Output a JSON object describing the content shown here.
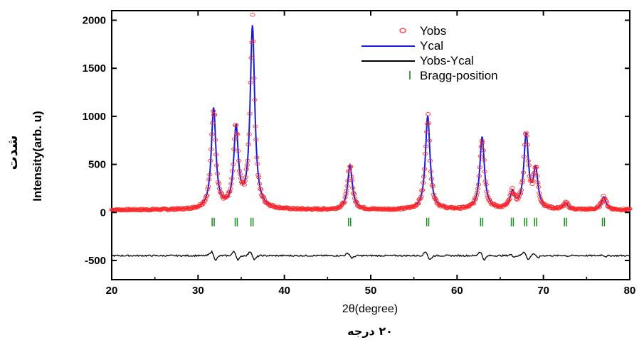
{
  "chart_data": {
    "type": "line",
    "xlabel": "2θ(degree)",
    "xlabel_secondary": "۲۰ درجه",
    "ylabel": "Intensity(arb. u)",
    "ylabel_secondary": "شدت",
    "xlim": [
      20,
      80
    ],
    "ylim": [
      -700,
      2100
    ],
    "xticks": [
      20,
      30,
      40,
      50,
      60,
      70,
      80
    ],
    "yticks": [
      -500,
      0,
      500,
      1000,
      1500,
      2000
    ],
    "grid": false,
    "legend_position": "top-right",
    "colors": {
      "Yobs": "#ff2b2b",
      "Ycal": "#1a1adc",
      "Yobs-Ycal": "#000000",
      "Bragg-position": "#1a8a1a"
    },
    "legend": [
      {
        "name": "Yobs",
        "marker": "circle"
      },
      {
        "name": "Ycal",
        "marker": "line"
      },
      {
        "name": "Yobs-Ycal",
        "marker": "line"
      },
      {
        "name": "Bragg-position",
        "marker": "tick"
      }
    ],
    "peaks": [
      {
        "x": 31.8,
        "y": 1070
      },
      {
        "x": 34.4,
        "y": 850
      },
      {
        "x": 36.3,
        "y": 1920
      },
      {
        "x": 47.6,
        "y": 490
      },
      {
        "x": 56.6,
        "y": 1000
      },
      {
        "x": 62.9,
        "y": 780
      },
      {
        "x": 66.4,
        "y": 190
      },
      {
        "x": 68.0,
        "y": 790
      },
      {
        "x": 69.1,
        "y": 420
      },
      {
        "x": 72.6,
        "y": 90
      },
      {
        "x": 77.0,
        "y": 160
      }
    ],
    "background": 25,
    "bragg_positions": [
      31.75,
      34.42,
      36.25,
      47.55,
      56.6,
      62.85,
      66.4,
      67.95,
      69.1,
      72.55,
      76.95
    ],
    "bragg_y": -100,
    "difference_baseline": -450
  }
}
